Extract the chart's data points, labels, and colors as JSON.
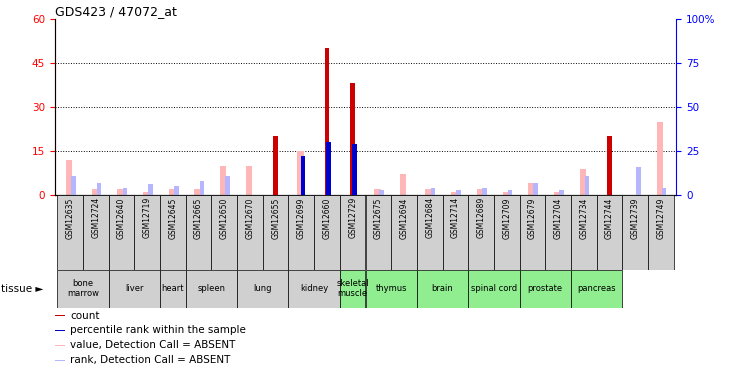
{
  "title": "GDS423 / 47072_at",
  "samples": [
    "GSM12635",
    "GSM12724",
    "GSM12640",
    "GSM12719",
    "GSM12645",
    "GSM12665",
    "GSM12650",
    "GSM12670",
    "GSM12655",
    "GSM12699",
    "GSM12660",
    "GSM12729",
    "GSM12675",
    "GSM12694",
    "GSM12684",
    "GSM12714",
    "GSM12689",
    "GSM12709",
    "GSM12679",
    "GSM12704",
    "GSM12734",
    "GSM12744",
    "GSM12739",
    "GSM12749"
  ],
  "tissues": [
    {
      "label": "bone\nmarrow",
      "n": 2,
      "green": false
    },
    {
      "label": "liver",
      "n": 2,
      "green": false
    },
    {
      "label": "heart",
      "n": 1,
      "green": false
    },
    {
      "label": "spleen",
      "n": 2,
      "green": false
    },
    {
      "label": "lung",
      "n": 2,
      "green": false
    },
    {
      "label": "kidney",
      "n": 2,
      "green": false
    },
    {
      "label": "skeletal\nmuscle",
      "n": 1,
      "green": true
    },
    {
      "label": "thymus",
      "n": 2,
      "green": true
    },
    {
      "label": "brain",
      "n": 2,
      "green": true
    },
    {
      "label": "spinal cord",
      "n": 2,
      "green": true
    },
    {
      "label": "prostate",
      "n": 2,
      "green": true
    },
    {
      "label": "pancreas",
      "n": 2,
      "green": true
    }
  ],
  "count_values": [
    0,
    0,
    0,
    0,
    0,
    0,
    0,
    0,
    20,
    0,
    50,
    38,
    0,
    0,
    0,
    0,
    0,
    0,
    0,
    0,
    0,
    20,
    0,
    0
  ],
  "rank_values": [
    0,
    0,
    0,
    0,
    0,
    0,
    0,
    0,
    0,
    22,
    30,
    29,
    0,
    0,
    0,
    0,
    0,
    0,
    0,
    0,
    0,
    0,
    0,
    0
  ],
  "absent_value": [
    12,
    2,
    2,
    1,
    2,
    2,
    10,
    10,
    0,
    15,
    0,
    0,
    2,
    7,
    2,
    1,
    2,
    1,
    4,
    1,
    9,
    0,
    0,
    25
  ],
  "absent_rank": [
    11,
    7,
    4,
    6,
    5,
    8,
    11,
    0,
    0,
    0,
    0,
    0,
    3,
    0,
    4,
    3,
    4,
    3,
    7,
    3,
    11,
    0,
    16,
    4
  ],
  "ylim_left": [
    0,
    60
  ],
  "ylim_right": [
    0,
    100
  ],
  "yticks_left": [
    0,
    15,
    30,
    45,
    60
  ],
  "yticks_right": [
    0,
    25,
    50,
    75,
    100
  ],
  "color_count": "#cc0000",
  "color_rank": "#0000cc",
  "color_absent_val": "#ffb6b6",
  "color_absent_rank": "#b6b6ff",
  "bg_gray": "#d0d0d0",
  "bg_green": "#90ee90",
  "tissue_label": "tissue ►"
}
